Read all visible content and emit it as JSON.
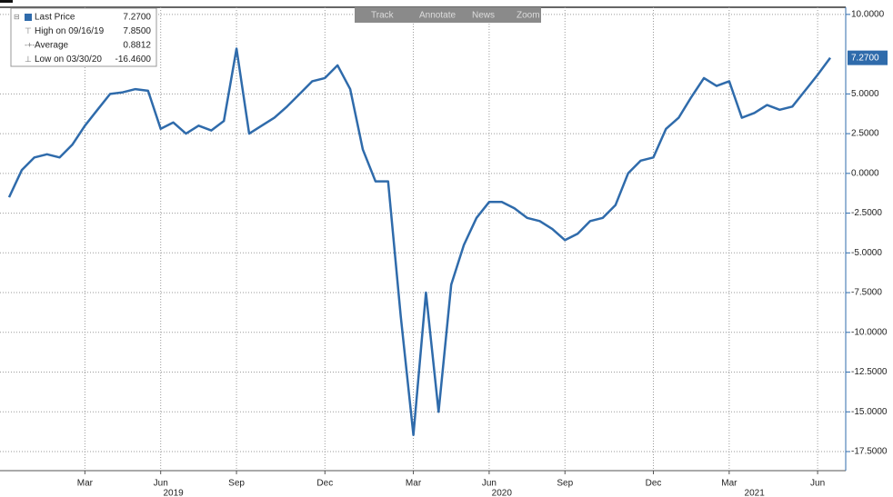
{
  "toolbar": [
    "Track",
    "Annotate",
    "News",
    "Zoom"
  ],
  "chart_data": {
    "type": "line",
    "categories": [
      null,
      null,
      null,
      null,
      null,
      null,
      "Mar",
      null,
      null,
      null,
      null,
      null,
      "Jun",
      null,
      null,
      null,
      null,
      null,
      "Sep",
      null,
      null,
      null,
      null,
      null,
      null,
      "Dec",
      null,
      null,
      null,
      null,
      null,
      null,
      "Mar",
      null,
      null,
      null,
      null,
      null,
      "Jun",
      null,
      null,
      null,
      null,
      null,
      "Sep",
      null,
      null,
      null,
      null,
      null,
      null,
      "Dec",
      null,
      null,
      null,
      null,
      null,
      "Mar",
      null,
      null,
      null,
      null,
      null,
      null,
      "Jun",
      null
    ],
    "categories2": [
      null,
      null,
      null,
      null,
      null,
      null,
      null,
      null,
      null,
      null,
      null,
      null,
      null,
      "2019",
      null,
      null,
      null,
      null,
      null,
      null,
      null,
      null,
      null,
      null,
      null,
      null,
      null,
      null,
      null,
      null,
      null,
      null,
      null,
      null,
      null,
      null,
      null,
      null,
      null,
      "2020",
      null,
      null,
      null,
      null,
      null,
      null,
      null,
      null,
      null,
      null,
      null,
      null,
      null,
      null,
      null,
      null,
      null,
      null,
      null,
      "2021",
      null,
      null,
      null,
      null,
      null,
      null
    ],
    "series": [
      {
        "name": "Last Price",
        "color": "#2f6bab",
        "values": [
          -1.5,
          0.2,
          1.0,
          1.2,
          1.0,
          1.8,
          3.0,
          4.0,
          5.0,
          5.1,
          5.3,
          5.2,
          2.8,
          3.2,
          2.5,
          3.0,
          2.7,
          3.3,
          7.85,
          2.5,
          3.0,
          3.5,
          4.2,
          5.0,
          5.8,
          6.0,
          6.8,
          5.3,
          1.5,
          -0.5,
          -0.5,
          -9.0,
          -16.46,
          -7.5,
          -15.0,
          -7.0,
          -4.5,
          -2.8,
          -1.8,
          -1.8,
          -2.2,
          -2.8,
          -3.0,
          -3.5,
          -4.2,
          -3.8,
          -3.0,
          -2.8,
          -2.0,
          0.0,
          0.8,
          1.0,
          2.8,
          3.5,
          4.8,
          6.0,
          5.5,
          5.8,
          3.5,
          3.8,
          4.3,
          4.0,
          4.2,
          5.2,
          6.2,
          7.27
        ]
      }
    ],
    "stats": [
      {
        "name": "Last Price",
        "value": 7.27,
        "label": "7.2700"
      },
      {
        "name": "High on 09/16/19",
        "value": 7.85,
        "label": "7.8500"
      },
      {
        "name": "Average",
        "value": 0.8812,
        "label": "0.8812"
      },
      {
        "name": "Low on 03/30/20",
        "value": -16.46,
        "label": "-16.4600"
      }
    ],
    "ylim": [
      -18.7,
      10.45
    ],
    "yticks": [
      {
        "value": 10,
        "label": "10.0000"
      },
      {
        "value": 5,
        "label": "5.0000"
      },
      {
        "value": 2.5,
        "label": "2.5000"
      },
      {
        "value": 0,
        "label": "0.0000"
      },
      {
        "value": -2.5,
        "label": "-2.5000"
      },
      {
        "value": -5,
        "label": "-5.0000"
      },
      {
        "value": -7.5,
        "label": "-7.5000"
      },
      {
        "value": -10,
        "label": "-10.0000"
      },
      {
        "value": -12.5,
        "label": "-12.5000"
      },
      {
        "value": -15,
        "label": "-15.0000"
      },
      {
        "value": -17.5,
        "label": "-17.5000"
      }
    ],
    "grid": true
  }
}
